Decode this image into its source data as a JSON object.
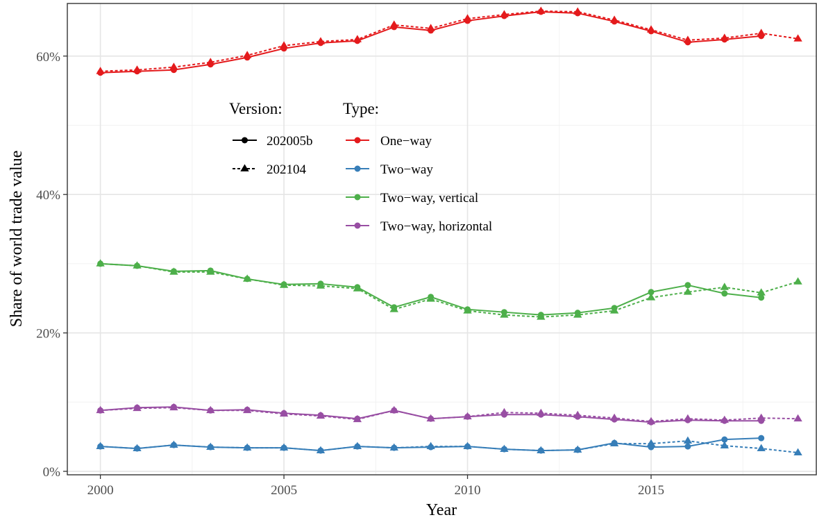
{
  "chart_data": {
    "type": "line",
    "title": "",
    "xlabel": "Year",
    "ylabel": "Share of world trade value",
    "xlim": [
      1999.1,
      2019.5
    ],
    "ylim": [
      -0.5,
      67.6
    ],
    "x_ticks": [
      2000,
      2005,
      2010,
      2015
    ],
    "x_tick_labels": [
      "2000",
      "2005",
      "2010",
      "2015"
    ],
    "y_ticks": [
      0,
      20,
      40,
      60
    ],
    "y_tick_labels": [
      "0%",
      "20%",
      "40%",
      "60%"
    ],
    "grid": true,
    "legend": {
      "placement": "top-left inside",
      "version_title": "Version:",
      "type_title": "Type:",
      "versions": [
        {
          "label": "202005b",
          "dash": "solid",
          "marker": "circle"
        },
        {
          "label": "202104",
          "dash": "dotted",
          "marker": "triangle"
        }
      ],
      "types": [
        {
          "label": "One−way",
          "color": "#e41a1c"
        },
        {
          "label": "Two−way",
          "color": "#377eb8"
        },
        {
          "label": "Two−way, vertical",
          "color": "#4daf4a"
        },
        {
          "label": "Two−way, horizontal",
          "color": "#984ea3"
        }
      ]
    },
    "series": [
      {
        "type": "One−way",
        "version": "202005b",
        "x": [
          2000,
          2001,
          2002,
          2003,
          2004,
          2005,
          2006,
          2007,
          2008,
          2009,
          2010,
          2011,
          2012,
          2013,
          2014,
          2015,
          2016,
          2017,
          2018
        ],
        "values": [
          57.6,
          57.8,
          58.0,
          58.8,
          59.8,
          61.1,
          61.9,
          62.2,
          64.2,
          63.7,
          65.1,
          65.8,
          66.4,
          66.2,
          65.0,
          63.6,
          62.0,
          62.4,
          62.9
        ]
      },
      {
        "type": "One−way",
        "version": "202104",
        "x": [
          2000,
          2001,
          2002,
          2003,
          2004,
          2005,
          2006,
          2007,
          2008,
          2009,
          2010,
          2011,
          2012,
          2013,
          2014,
          2015,
          2016,
          2017,
          2018,
          2019
        ],
        "values": [
          57.8,
          58.0,
          58.4,
          59.1,
          60.1,
          61.5,
          62.1,
          62.4,
          64.5,
          64.0,
          65.4,
          66.0,
          66.5,
          66.4,
          65.2,
          63.8,
          62.3,
          62.6,
          63.3,
          62.5
        ]
      },
      {
        "type": "Two−way",
        "version": "202005b",
        "x": [
          2000,
          2001,
          2002,
          2003,
          2004,
          2005,
          2006,
          2007,
          2008,
          2009,
          2010,
          2011,
          2012,
          2013,
          2014,
          2015,
          2016,
          2017,
          2018
        ],
        "values": [
          3.6,
          3.3,
          3.8,
          3.5,
          3.4,
          3.4,
          3.0,
          3.6,
          3.4,
          3.5,
          3.6,
          3.2,
          3.0,
          3.1,
          4.1,
          3.5,
          3.6,
          4.6,
          4.8
        ]
      },
      {
        "type": "Two−way",
        "version": "202104",
        "x": [
          2000,
          2001,
          2002,
          2003,
          2004,
          2005,
          2006,
          2007,
          2008,
          2009,
          2010,
          2011,
          2012,
          2013,
          2014,
          2015,
          2016,
          2017,
          2018,
          2019
        ],
        "values": [
          3.6,
          3.3,
          3.8,
          3.5,
          3.4,
          3.4,
          3.0,
          3.6,
          3.4,
          3.6,
          3.6,
          3.2,
          3.0,
          3.1,
          4.0,
          4.0,
          4.4,
          3.7,
          3.3,
          2.7
        ]
      },
      {
        "type": "Two−way, vertical",
        "version": "202005b",
        "x": [
          2000,
          2001,
          2002,
          2003,
          2004,
          2005,
          2006,
          2007,
          2008,
          2009,
          2010,
          2011,
          2012,
          2013,
          2014,
          2015,
          2016,
          2017,
          2018
        ],
        "values": [
          30.0,
          29.7,
          28.9,
          29.0,
          27.8,
          27.0,
          27.1,
          26.6,
          23.7,
          25.2,
          23.4,
          23.0,
          22.6,
          22.9,
          23.6,
          25.9,
          26.9,
          25.7,
          25.1
        ]
      },
      {
        "type": "Two−way, vertical",
        "version": "202104",
        "x": [
          2000,
          2001,
          2002,
          2003,
          2004,
          2005,
          2006,
          2007,
          2008,
          2009,
          2010,
          2011,
          2012,
          2013,
          2014,
          2015,
          2016,
          2017,
          2018,
          2019
        ],
        "values": [
          30.0,
          29.7,
          28.8,
          28.8,
          27.8,
          26.9,
          26.8,
          26.4,
          23.4,
          24.9,
          23.2,
          22.6,
          22.3,
          22.6,
          23.2,
          25.1,
          25.9,
          26.6,
          25.8,
          27.4
        ]
      },
      {
        "type": "Two−way, horizontal",
        "version": "202005b",
        "x": [
          2000,
          2001,
          2002,
          2003,
          2004,
          2005,
          2006,
          2007,
          2008,
          2009,
          2010,
          2011,
          2012,
          2013,
          2014,
          2015,
          2016,
          2017,
          2018
        ],
        "values": [
          8.8,
          9.2,
          9.3,
          8.8,
          8.9,
          8.4,
          8.1,
          7.6,
          8.8,
          7.6,
          7.9,
          8.2,
          8.2,
          7.9,
          7.5,
          7.1,
          7.4,
          7.3,
          7.3
        ]
      },
      {
        "type": "Two−way, horizontal",
        "version": "202104",
        "x": [
          2000,
          2001,
          2002,
          2003,
          2004,
          2005,
          2006,
          2007,
          2008,
          2009,
          2010,
          2011,
          2012,
          2013,
          2014,
          2015,
          2016,
          2017,
          2018,
          2019
        ],
        "values": [
          8.8,
          9.1,
          9.2,
          8.8,
          8.8,
          8.3,
          8.0,
          7.5,
          8.8,
          7.6,
          7.9,
          8.5,
          8.4,
          8.1,
          7.7,
          7.2,
          7.6,
          7.4,
          7.7,
          7.6
        ]
      }
    ]
  }
}
